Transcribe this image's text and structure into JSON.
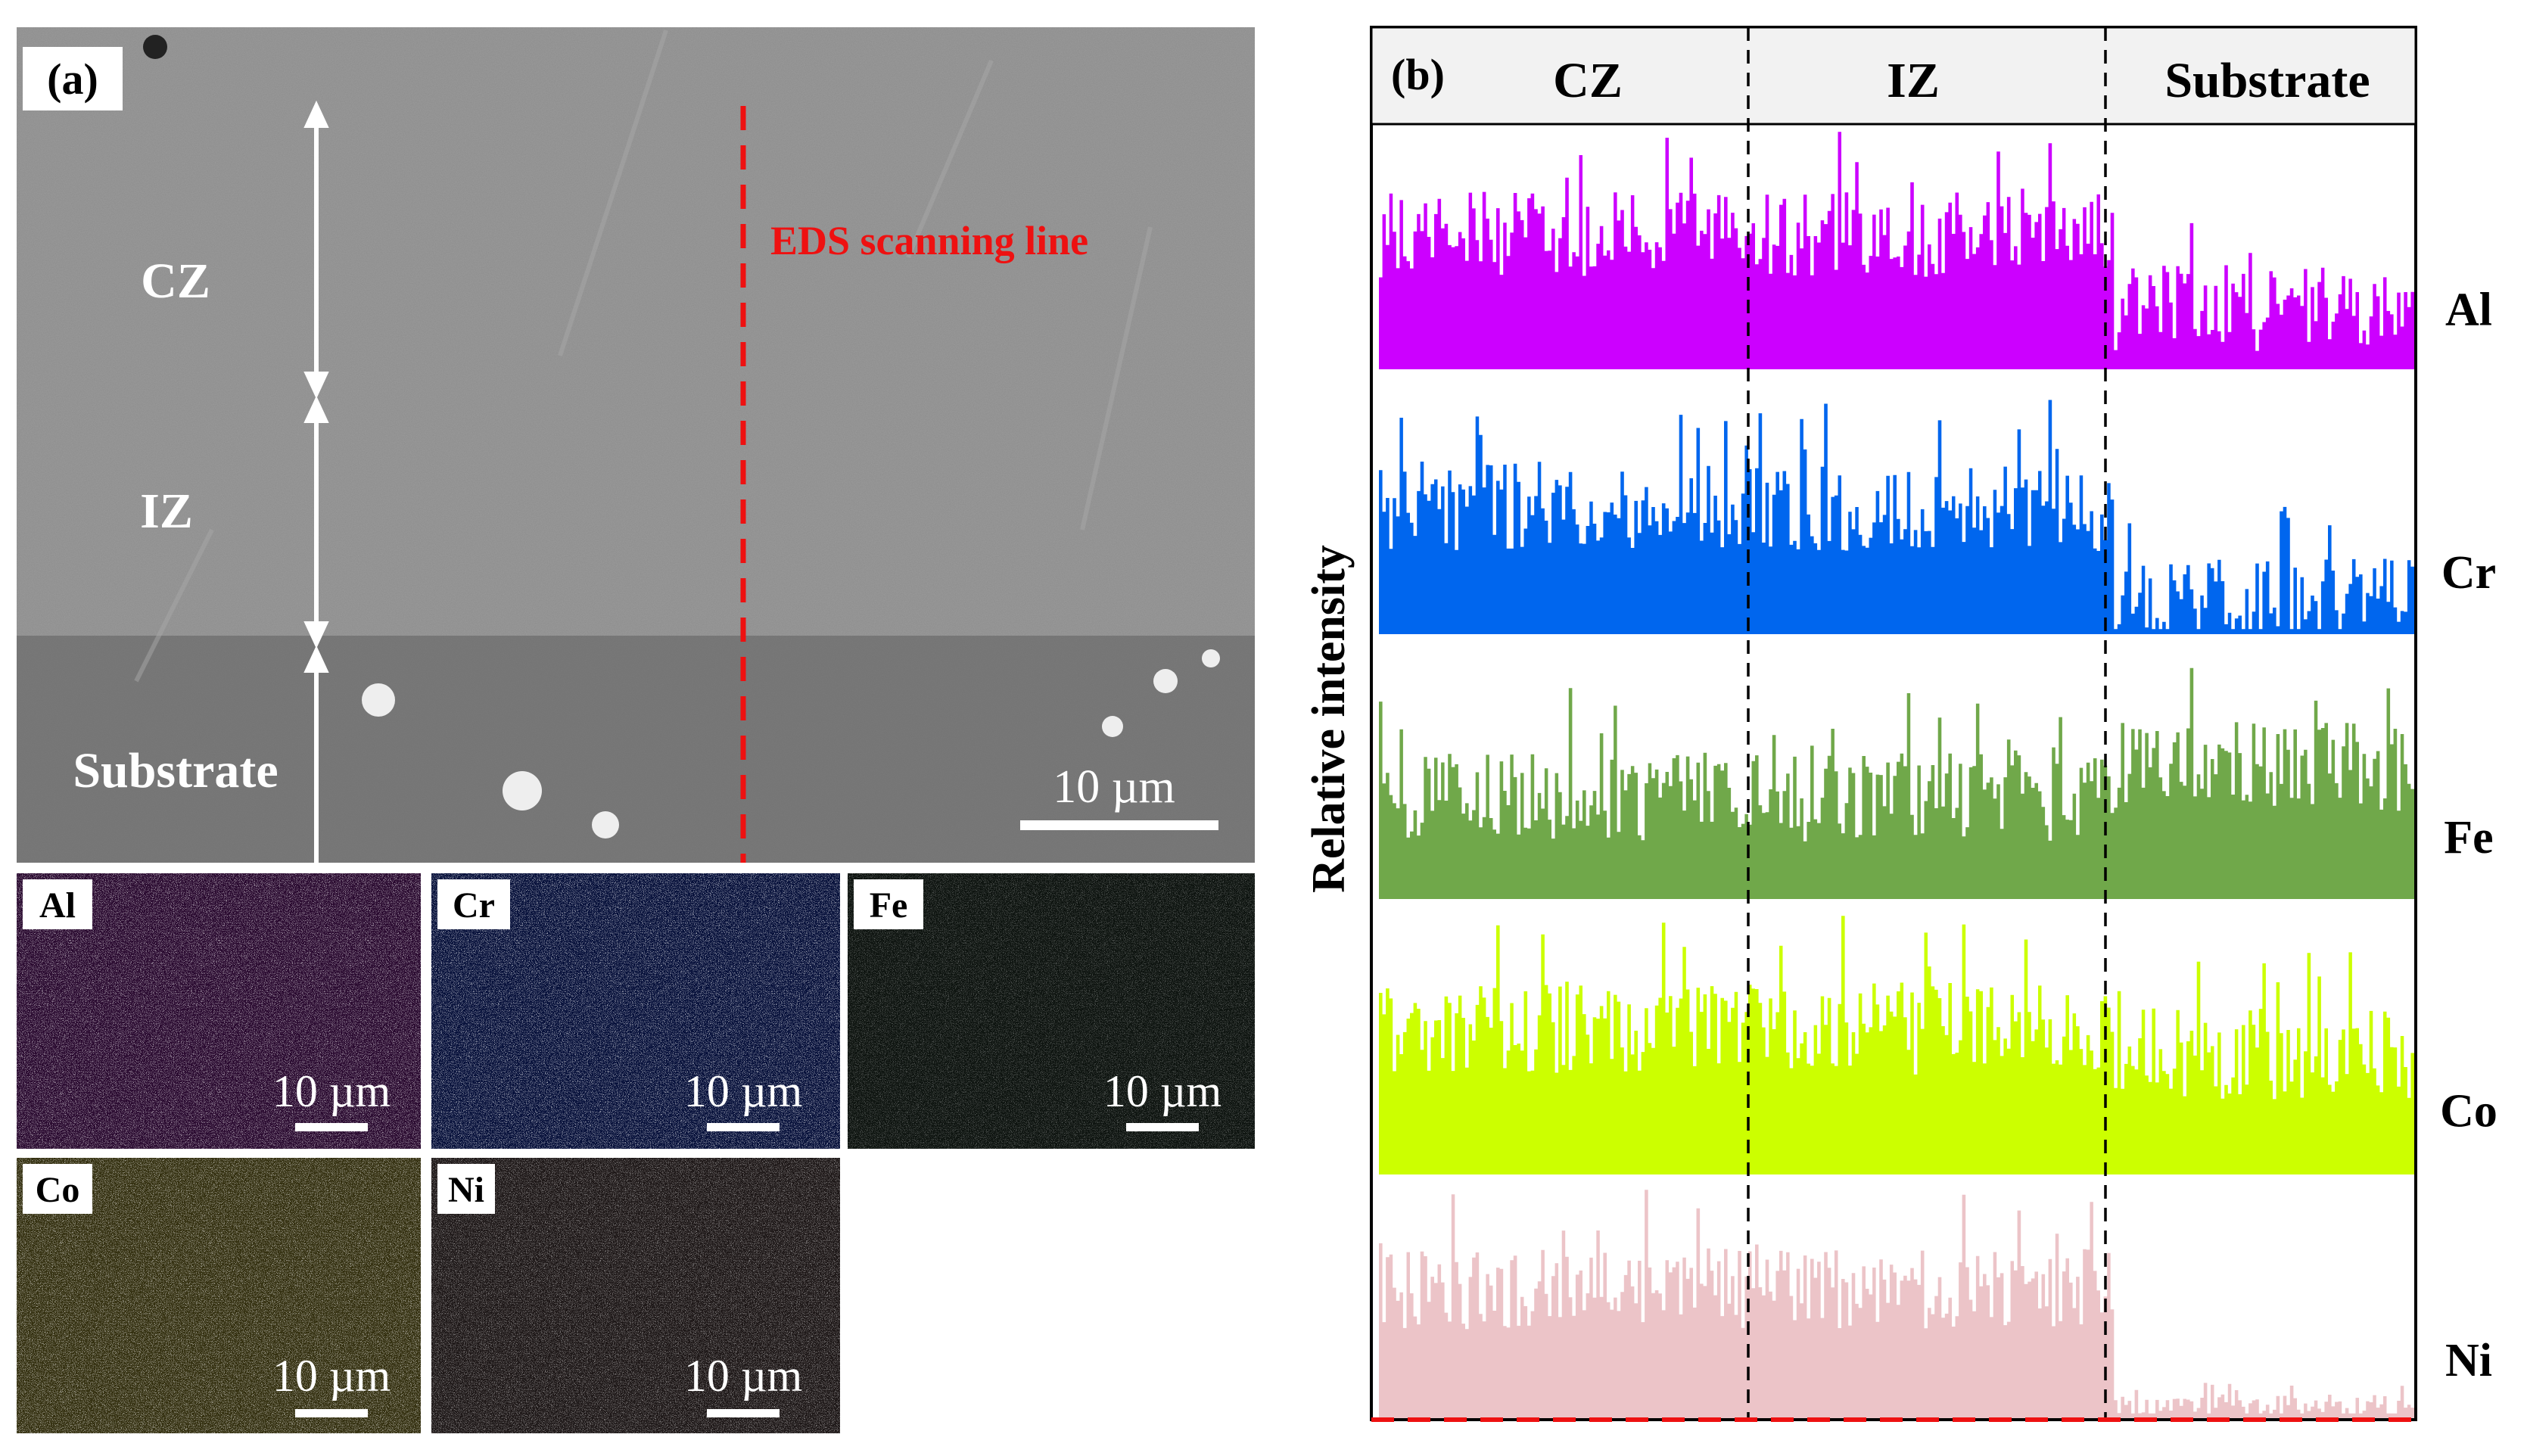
{
  "panel_a": {
    "label": "(a)",
    "zones": [
      "CZ",
      "IZ",
      "Substrate"
    ],
    "scan_line_label": "EDS scanning line",
    "scale_bar": "10 µm",
    "maps": [
      {
        "element": "Al",
        "scale": "10 µm",
        "color": "#c040d8"
      },
      {
        "element": "Cr",
        "scale": "10 µm",
        "color": "#3a6cff"
      },
      {
        "element": "Fe",
        "scale": "10 µm",
        "color": "#a8c890"
      },
      {
        "element": "Co",
        "scale": "10 µm",
        "color": "#d8d040"
      },
      {
        "element": "Ni",
        "scale": "10 µm",
        "color": "#c8a8a8"
      }
    ]
  },
  "panel_b": {
    "label": "(b)",
    "header": [
      "CZ",
      "IZ",
      "Substrate"
    ],
    "ylabel": "Relative intensity"
  },
  "chart_data": {
    "type": "area",
    "title": "(b)",
    "xlabel": "",
    "ylabel": "Relative intensity",
    "regions": [
      "CZ",
      "IZ",
      "Substrate"
    ],
    "region_boundaries": [
      0.36,
      0.71
    ],
    "series": [
      {
        "name": "Al",
        "color": "#cc00ff",
        "levels": [
          0.55,
          0.55,
          0.25
        ]
      },
      {
        "name": "Cr",
        "color": "#0066ee",
        "levels": [
          0.5,
          0.5,
          0.12
        ]
      },
      {
        "name": "Fe",
        "color": "#70a84a",
        "levels": [
          0.4,
          0.4,
          0.52
        ]
      },
      {
        "name": "Co",
        "color": "#ccff00",
        "levels": [
          0.55,
          0.55,
          0.45
        ]
      },
      {
        "name": "Ni",
        "color": "#ecc4c8",
        "levels": [
          0.55,
          0.55,
          0.05
        ]
      }
    ]
  }
}
